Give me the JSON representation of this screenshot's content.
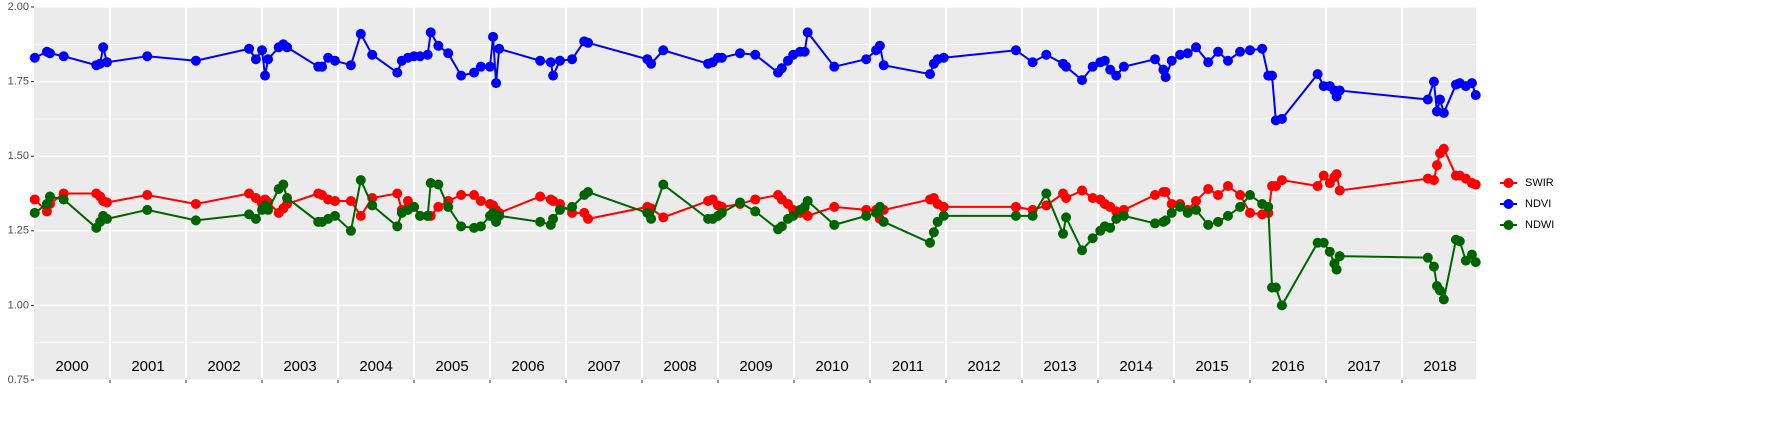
{
  "chart_data": {
    "type": "line",
    "x": [
      2000.01,
      2000.17,
      2000.21,
      2000.39,
      2000.82,
      2000.87,
      2000.91,
      2000.96,
      2001.49,
      2002.13,
      2002.83,
      2002.92,
      2003.0,
      2003.04,
      2003.08,
      2003.22,
      2003.28,
      2003.33,
      2003.74,
      2003.79,
      2003.87,
      2003.96,
      2004.17,
      2004.3,
      2004.45,
      2004.78,
      2004.84,
      2004.92,
      2005.0,
      2005.08,
      2005.18,
      2005.22,
      2005.32,
      2005.45,
      2005.62,
      2005.79,
      2005.88,
      2006.0,
      2006.04,
      2006.08,
      2006.12,
      2006.66,
      2006.8,
      2006.83,
      2006.92,
      2007.08,
      2007.24,
      2007.29,
      2008.07,
      2008.12,
      2008.28,
      2008.87,
      2008.93,
      2009.0,
      2009.05,
      2009.29,
      2009.49,
      2009.79,
      2009.84,
      2009.92,
      2009.99,
      2010.08,
      2010.14,
      2010.18,
      2010.53,
      2010.95,
      2011.08,
      2011.13,
      2011.18,
      2011.79,
      2011.84,
      2011.89,
      2011.97,
      2012.92,
      2013.14,
      2013.32,
      2013.54,
      2013.58,
      2013.79,
      2013.93,
      2014.03,
      2014.09,
      2014.16,
      2014.24,
      2014.34,
      2014.75,
      2014.86,
      2014.89,
      2014.97,
      2015.08,
      2015.18,
      2015.29,
      2015.45,
      2015.58,
      2015.71,
      2015.87,
      2016.0,
      2016.16,
      2016.24,
      2016.29,
      2016.34,
      2016.42,
      2016.89,
      2016.97,
      2017.05,
      2017.11,
      2017.14,
      2017.18,
      2018.34,
      2018.42,
      2018.46,
      2018.5,
      2018.55,
      2018.71,
      2018.76,
      2018.84,
      2018.92,
      2018.97
    ],
    "series": [
      {
        "name": "SWIR",
        "color": "#ff0000",
        "values": [
          1.355,
          1.315,
          1.34,
          1.375,
          1.375,
          1.365,
          1.35,
          1.345,
          1.37,
          1.34,
          1.375,
          1.36,
          1.34,
          1.355,
          1.345,
          1.31,
          1.325,
          1.34,
          1.375,
          1.37,
          1.355,
          1.35,
          1.35,
          1.3,
          1.36,
          1.375,
          1.32,
          1.35,
          1.33,
          1.3,
          1.3,
          1.3,
          1.33,
          1.35,
          1.37,
          1.37,
          1.35,
          1.34,
          1.335,
          1.32,
          1.31,
          1.365,
          1.355,
          1.35,
          1.34,
          1.31,
          1.31,
          1.29,
          1.33,
          1.325,
          1.295,
          1.35,
          1.355,
          1.335,
          1.33,
          1.34,
          1.355,
          1.37,
          1.355,
          1.34,
          1.32,
          1.31,
          1.31,
          1.3,
          1.33,
          1.32,
          1.32,
          1.29,
          1.32,
          1.355,
          1.36,
          1.34,
          1.33,
          1.33,
          1.32,
          1.335,
          1.375,
          1.36,
          1.385,
          1.36,
          1.355,
          1.34,
          1.33,
          1.315,
          1.32,
          1.37,
          1.38,
          1.38,
          1.34,
          1.34,
          1.32,
          1.35,
          1.39,
          1.37,
          1.4,
          1.37,
          1.31,
          1.305,
          1.31,
          1.4,
          1.4,
          1.42,
          1.4,
          1.435,
          1.41,
          1.43,
          1.44,
          1.385,
          1.425,
          1.42,
          1.47,
          1.51,
          1.525,
          1.435,
          1.435,
          1.425,
          1.41,
          1.405
        ]
      },
      {
        "name": "NDVI",
        "color": "#0000ff",
        "values": [
          1.83,
          1.85,
          1.845,
          1.835,
          1.805,
          1.81,
          1.865,
          1.815,
          1.835,
          1.82,
          1.86,
          1.825,
          1.855,
          1.77,
          1.825,
          1.865,
          1.875,
          1.865,
          1.8,
          1.8,
          1.83,
          1.82,
          1.805,
          1.91,
          1.84,
          1.78,
          1.82,
          1.83,
          1.835,
          1.835,
          1.84,
          1.915,
          1.87,
          1.845,
          1.77,
          1.78,
          1.8,
          1.8,
          1.9,
          1.745,
          1.86,
          1.82,
          1.815,
          1.77,
          1.82,
          1.825,
          1.885,
          1.88,
          1.825,
          1.81,
          1.855,
          1.81,
          1.815,
          1.83,
          1.83,
          1.845,
          1.84,
          1.78,
          1.795,
          1.82,
          1.84,
          1.85,
          1.85,
          1.915,
          1.8,
          1.825,
          1.855,
          1.87,
          1.805,
          1.775,
          1.81,
          1.825,
          1.83,
          1.855,
          1.815,
          1.84,
          1.81,
          1.8,
          1.755,
          1.8,
          1.815,
          1.82,
          1.79,
          1.77,
          1.8,
          1.825,
          1.79,
          1.765,
          1.82,
          1.84,
          1.845,
          1.865,
          1.815,
          1.85,
          1.82,
          1.85,
          1.855,
          1.86,
          1.77,
          1.77,
          1.62,
          1.625,
          1.775,
          1.735,
          1.735,
          1.72,
          1.7,
          1.72,
          1.69,
          1.75,
          1.65,
          1.69,
          1.645,
          1.74,
          1.745,
          1.735,
          1.745,
          1.705
        ]
      },
      {
        "name": "NDWI",
        "color": "#006400",
        "values": [
          1.31,
          1.34,
          1.365,
          1.355,
          1.26,
          1.28,
          1.3,
          1.29,
          1.32,
          1.285,
          1.305,
          1.29,
          1.32,
          1.335,
          1.32,
          1.39,
          1.405,
          1.36,
          1.28,
          1.28,
          1.29,
          1.3,
          1.25,
          1.42,
          1.335,
          1.265,
          1.31,
          1.32,
          1.33,
          1.3,
          1.3,
          1.41,
          1.405,
          1.33,
          1.265,
          1.26,
          1.265,
          1.3,
          1.31,
          1.28,
          1.3,
          1.28,
          1.27,
          1.29,
          1.32,
          1.33,
          1.37,
          1.38,
          1.31,
          1.29,
          1.405,
          1.29,
          1.29,
          1.3,
          1.31,
          1.345,
          1.315,
          1.255,
          1.265,
          1.29,
          1.3,
          1.32,
          1.33,
          1.35,
          1.27,
          1.3,
          1.31,
          1.33,
          1.28,
          1.21,
          1.245,
          1.28,
          1.3,
          1.3,
          1.3,
          1.375,
          1.24,
          1.295,
          1.185,
          1.225,
          1.25,
          1.265,
          1.26,
          1.29,
          1.3,
          1.275,
          1.28,
          1.285,
          1.31,
          1.33,
          1.31,
          1.32,
          1.27,
          1.28,
          1.3,
          1.33,
          1.37,
          1.34,
          1.33,
          1.06,
          1.06,
          1.0,
          1.21,
          1.21,
          1.18,
          1.14,
          1.12,
          1.165,
          1.16,
          1.13,
          1.065,
          1.05,
          1.02,
          1.22,
          1.215,
          1.15,
          1.17,
          1.145
        ]
      }
    ],
    "xlim": [
      2000,
      2019
    ],
    "xticks": [
      {
        "value": 2000.5,
        "label": "2000"
      },
      {
        "value": 2001.5,
        "label": "2001"
      },
      {
        "value": 2002.5,
        "label": "2002"
      },
      {
        "value": 2003.5,
        "label": "2003"
      },
      {
        "value": 2004.5,
        "label": "2004"
      },
      {
        "value": 2005.5,
        "label": "2005"
      },
      {
        "value": 2006.5,
        "label": "2006"
      },
      {
        "value": 2007.5,
        "label": "2007"
      },
      {
        "value": 2008.5,
        "label": "2008"
      },
      {
        "value": 2009.5,
        "label": "2009"
      },
      {
        "value": 2010.5,
        "label": "2010"
      },
      {
        "value": 2011.5,
        "label": "2011"
      },
      {
        "value": 2012.5,
        "label": "2012"
      },
      {
        "value": 2013.5,
        "label": "2013"
      },
      {
        "value": 2014.5,
        "label": "2014"
      },
      {
        "value": 2015.5,
        "label": "2015"
      },
      {
        "value": 2016.5,
        "label": "2016"
      },
      {
        "value": 2017.5,
        "label": "2017"
      },
      {
        "value": 2018.5,
        "label": "2018"
      }
    ],
    "ylim": [
      0.75,
      2.0
    ],
    "yticks": [
      {
        "value": 0.75,
        "label": "0.75"
      },
      {
        "value": 1,
        "label": "1.00"
      },
      {
        "value": 1.25,
        "label": "1.25"
      },
      {
        "value": 1.5,
        "label": "1.50"
      },
      {
        "value": 1.75,
        "label": "1.75"
      },
      {
        "value": 2,
        "label": "2.00"
      }
    ],
    "grid": true,
    "legend": "right"
  }
}
